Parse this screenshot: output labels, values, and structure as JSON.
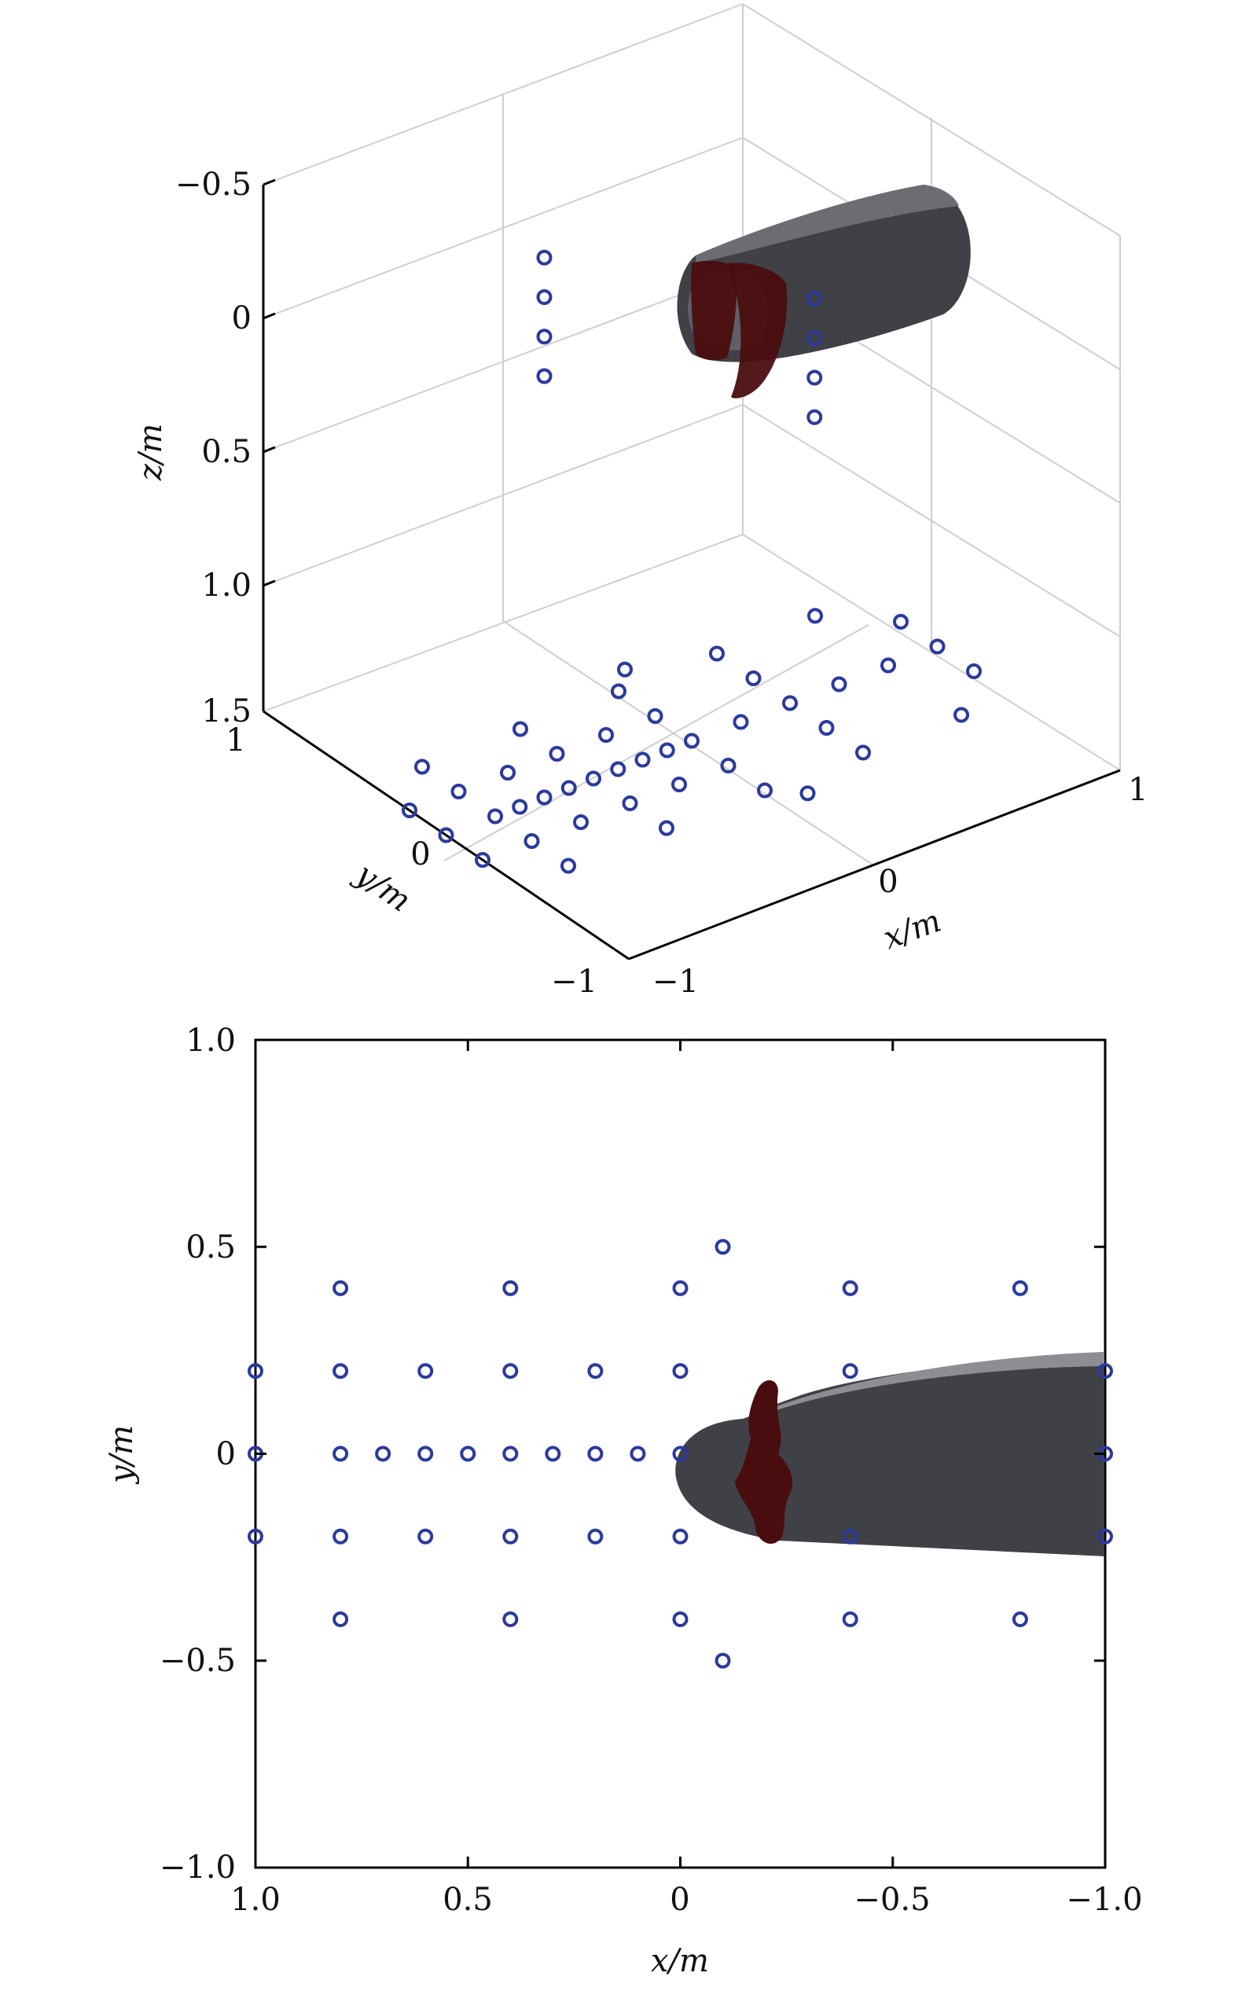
{
  "chart_data": [
    {
      "type": "scatter3d",
      "xlabel": "x/m",
      "ylabel": "y/m",
      "zlabel": "z/m",
      "xticks": [
        "−1",
        "0",
        "1"
      ],
      "yticks": [
        "1",
        "0",
        "−1"
      ],
      "zticks": [
        "−0.5",
        "0",
        "0.5",
        "1.0",
        "1.5"
      ],
      "xlim": [
        -1,
        1
      ],
      "ylim": [
        -1,
        1
      ],
      "zlim": [
        -0.5,
        1.5
      ],
      "z_reversed": true,
      "grid": true,
      "points": [
        {
          "x": 1.0,
          "y": 0.2,
          "z": 1.5
        },
        {
          "x": 1.0,
          "y": 0.0,
          "z": 1.5
        },
        {
          "x": 1.0,
          "y": -0.2,
          "z": 1.5
        },
        {
          "x": 0.8,
          "y": 0.4,
          "z": 1.5
        },
        {
          "x": 0.8,
          "y": 0.2,
          "z": 1.5
        },
        {
          "x": 0.8,
          "y": 0.0,
          "z": 1.5
        },
        {
          "x": 0.8,
          "y": -0.2,
          "z": 1.5
        },
        {
          "x": 0.8,
          "y": -0.4,
          "z": 1.5
        },
        {
          "x": 0.7,
          "y": 0.0,
          "z": 1.5
        },
        {
          "x": 0.6,
          "y": 0.2,
          "z": 1.5
        },
        {
          "x": 0.6,
          "y": 0.0,
          "z": 1.5
        },
        {
          "x": 0.6,
          "y": -0.2,
          "z": 1.5
        },
        {
          "x": 0.5,
          "y": 0.0,
          "z": 1.5
        },
        {
          "x": 0.4,
          "y": 0.4,
          "z": 1.5
        },
        {
          "x": 0.4,
          "y": 0.2,
          "z": 1.5
        },
        {
          "x": 0.4,
          "y": 0.0,
          "z": 1.5
        },
        {
          "x": 0.4,
          "y": -0.2,
          "z": 1.5
        },
        {
          "x": 0.4,
          "y": -0.4,
          "z": 1.5
        },
        {
          "x": 0.3,
          "y": 0.0,
          "z": 1.5
        },
        {
          "x": 0.2,
          "y": 0.2,
          "z": 1.5
        },
        {
          "x": 0.2,
          "y": 0.0,
          "z": 1.5
        },
        {
          "x": 0.2,
          "y": -0.2,
          "z": 1.5
        },
        {
          "x": 0.1,
          "y": 0.0,
          "z": 1.5
        },
        {
          "x": 0.0,
          "y": 0.4,
          "z": 1.5
        },
        {
          "x": 0.0,
          "y": 0.2,
          "z": 1.5
        },
        {
          "x": 0.0,
          "y": 0.0,
          "z": 1.5
        },
        {
          "x": 0.0,
          "y": -0.2,
          "z": 1.5
        },
        {
          "x": 0.0,
          "y": -0.4,
          "z": 1.5
        },
        {
          "x": -0.1,
          "y": 0.5,
          "z": 1.5
        },
        {
          "x": -0.1,
          "y": -0.5,
          "z": 1.5
        },
        {
          "x": -0.2,
          "y": 0.0,
          "z": 1.5
        },
        {
          "x": -0.4,
          "y": 0.4,
          "z": 1.5
        },
        {
          "x": -0.4,
          "y": 0.2,
          "z": 1.5
        },
        {
          "x": -0.4,
          "y": 0.0,
          "z": 1.5
        },
        {
          "x": -0.4,
          "y": -0.2,
          "z": 1.5
        },
        {
          "x": -0.4,
          "y": -0.4,
          "z": 1.5
        },
        {
          "x": -0.6,
          "y": 0.0,
          "z": 1.5
        },
        {
          "x": -0.8,
          "y": 0.4,
          "z": 1.5
        },
        {
          "x": -0.8,
          "y": 0.0,
          "z": 1.5
        },
        {
          "x": -0.8,
          "y": -0.4,
          "z": 1.5
        },
        {
          "x": -1.0,
          "y": 0.2,
          "z": 1.5
        },
        {
          "x": -1.0,
          "y": 0.0,
          "z": 1.5
        },
        {
          "x": -1.0,
          "y": -0.2,
          "z": 1.5
        },
        {
          "x": 0.6,
          "y": 0.0,
          "z": -0.55
        },
        {
          "x": 0.6,
          "y": 0.0,
          "z": -0.4
        },
        {
          "x": 0.6,
          "y": 0.0,
          "z": -0.25
        },
        {
          "x": 0.6,
          "y": 0.0,
          "z": -0.1
        },
        {
          "x": -0.5,
          "y": 0.0,
          "z": 0.0
        },
        {
          "x": -0.5,
          "y": 0.0,
          "z": 0.15
        },
        {
          "x": -0.5,
          "y": 0.0,
          "z": 0.3
        },
        {
          "x": -0.5,
          "y": 0.0,
          "z": 0.45
        }
      ]
    },
    {
      "type": "scatter",
      "xlabel": "x/m",
      "ylabel": "y/m",
      "xlim": [
        1.0,
        -1.0
      ],
      "ylim": [
        -1.0,
        1.0
      ],
      "xticks": [
        "1.0",
        "0.5",
        "0",
        "−0.5",
        "−1.0"
      ],
      "yticks": [
        "1.0",
        "0.5",
        "0",
        "−0.5",
        "−1.0"
      ],
      "xtick_values": [
        1.0,
        0.5,
        0,
        -0.5,
        -1.0
      ],
      "ytick_values": [
        1.0,
        0.5,
        0,
        -0.5,
        -1.0
      ],
      "points": [
        {
          "x": 1.0,
          "y": 0.2
        },
        {
          "x": 1.0,
          "y": 0.0
        },
        {
          "x": 1.0,
          "y": -0.2
        },
        {
          "x": 0.8,
          "y": 0.4
        },
        {
          "x": 0.8,
          "y": 0.2
        },
        {
          "x": 0.8,
          "y": 0.0
        },
        {
          "x": 0.8,
          "y": -0.2
        },
        {
          "x": 0.8,
          "y": -0.4
        },
        {
          "x": 0.7,
          "y": 0.0
        },
        {
          "x": 0.6,
          "y": 0.2
        },
        {
          "x": 0.6,
          "y": 0.0
        },
        {
          "x": 0.6,
          "y": -0.2
        },
        {
          "x": 0.5,
          "y": 0.0
        },
        {
          "x": 0.4,
          "y": 0.4
        },
        {
          "x": 0.4,
          "y": 0.2
        },
        {
          "x": 0.4,
          "y": 0.0
        },
        {
          "x": 0.4,
          "y": -0.2
        },
        {
          "x": 0.4,
          "y": -0.4
        },
        {
          "x": 0.3,
          "y": 0.0
        },
        {
          "x": 0.2,
          "y": 0.2
        },
        {
          "x": 0.2,
          "y": 0.0
        },
        {
          "x": 0.2,
          "y": -0.2
        },
        {
          "x": 0.1,
          "y": 0.0
        },
        {
          "x": 0.0,
          "y": 0.4
        },
        {
          "x": 0.0,
          "y": 0.2
        },
        {
          "x": 0.0,
          "y": 0.0
        },
        {
          "x": 0.0,
          "y": -0.2
        },
        {
          "x": 0.0,
          "y": -0.4
        },
        {
          "x": -0.1,
          "y": 0.5
        },
        {
          "x": -0.1,
          "y": -0.5
        },
        {
          "x": -0.4,
          "y": 0.4
        },
        {
          "x": -0.4,
          "y": 0.2
        },
        {
          "x": -0.4,
          "y": -0.2
        },
        {
          "x": -0.4,
          "y": -0.4
        },
        {
          "x": -0.8,
          "y": 0.4
        },
        {
          "x": -0.8,
          "y": -0.4
        },
        {
          "x": -1.0,
          "y": 0.2
        },
        {
          "x": -1.0,
          "y": 0.0
        },
        {
          "x": -1.0,
          "y": -0.2
        }
      ],
      "shapes": {
        "body_color": "#3f4147",
        "body_highlight": "#8c8e94",
        "ring_color": "#4a0d0f"
      }
    }
  ]
}
